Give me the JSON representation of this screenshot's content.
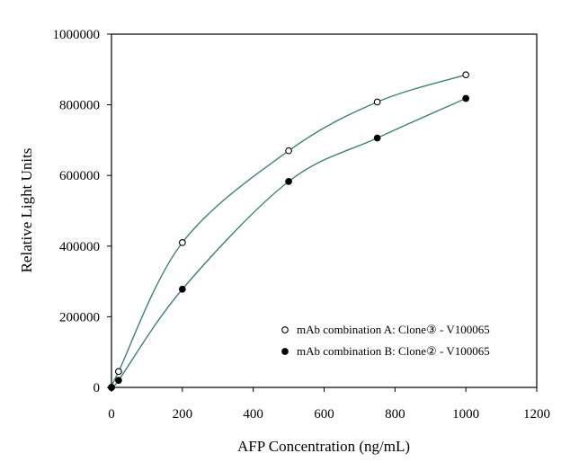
{
  "chart_data": {
    "type": "scatter",
    "title": "",
    "xlabel": "AFP Concentration (ng/mL)",
    "ylabel": "Relative Light Units",
    "xlim": [
      0,
      1200
    ],
    "ylim": [
      0,
      1000000
    ],
    "x_ticks": [
      0,
      200,
      400,
      600,
      800,
      1000,
      1200
    ],
    "y_ticks": [
      0,
      200000,
      400000,
      600000,
      800000,
      1000000
    ],
    "x_tick_labels": [
      "0",
      "200",
      "400",
      "600",
      "800",
      "1000",
      "1200"
    ],
    "y_tick_labels": [
      "0",
      "200000",
      "400000",
      "600000",
      "800000",
      "1000000"
    ],
    "grid": false,
    "legend_position": "bottom-right",
    "trendline": "smooth fit curve per series",
    "curve_color": "#3f7f7a",
    "series": [
      {
        "name": "mAb combination A: Clone③ - V100065",
        "marker": "open-circle",
        "x": [
          0,
          20,
          200,
          500,
          750,
          1000
        ],
        "y": [
          0,
          45000,
          410000,
          670000,
          808000,
          885000
        ]
      },
      {
        "name": "mAb combination B: Clone② - V100065",
        "marker": "filled-circle",
        "x": [
          0,
          20,
          200,
          500,
          750,
          1000
        ],
        "y": [
          0,
          20000,
          278000,
          583000,
          706000,
          818000
        ]
      }
    ]
  }
}
